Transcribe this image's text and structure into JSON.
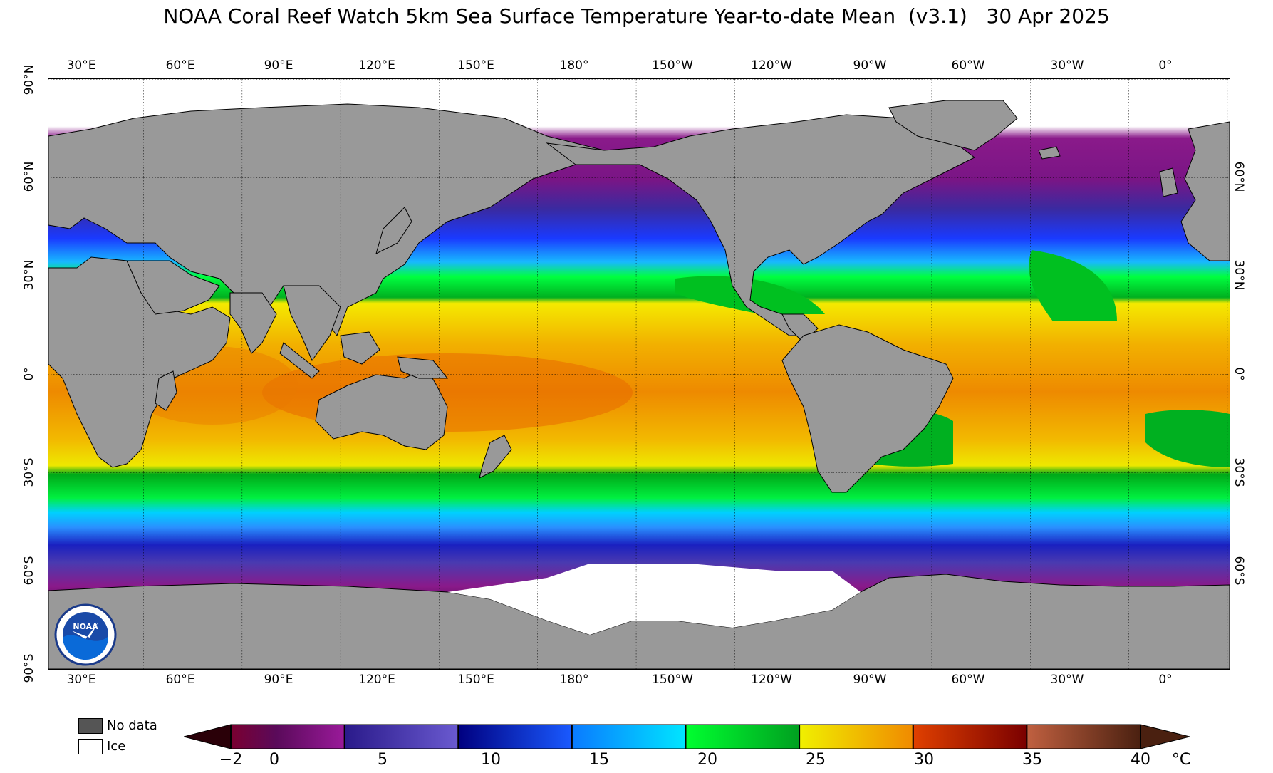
{
  "title": "NOAA Coral Reef Watch 5km Sea Surface Temperature Year-to-date Mean  (v3.1)   30 Apr 2025",
  "lon_ticks": [
    "30°E",
    "60°E",
    "90°E",
    "120°E",
    "150°E",
    "180°",
    "150°W",
    "120°W",
    "90°W",
    "60°W",
    "30°W",
    "0°"
  ],
  "lat_ticks": [
    "90°N",
    "60°N",
    "30°N",
    "0°",
    "30°S",
    "60°S",
    "90°S"
  ],
  "right_lat_ticks": [
    "60°N",
    "30°N",
    "0°",
    "30°S",
    "60°S"
  ],
  "map": {
    "land_color": "#999999",
    "ice_color": "#ffffff",
    "grid": "dotted",
    "logo": "noaa-logo"
  },
  "legend": {
    "no_data_label": "No data",
    "no_data_color": "#555555",
    "ice_label": "Ice",
    "ice_color": "#ffffff"
  },
  "colorbar": {
    "unit": "°C",
    "labels": [
      "−2",
      "0",
      "5",
      "10",
      "15",
      "20",
      "25",
      "30",
      "35",
      "40"
    ],
    "stops": [
      {
        "value": -2,
        "color": "#2a0008"
      },
      {
        "value": 0,
        "color": "#7a0030"
      },
      {
        "value": 2,
        "color": "#5a0a5a"
      },
      {
        "value": 5,
        "color": "#9a1a9a"
      },
      {
        "value": 5.01,
        "color": "#2a1a8a"
      },
      {
        "value": 10,
        "color": "#6a5ad0"
      },
      {
        "value": 10.01,
        "color": "#000080"
      },
      {
        "value": 15,
        "color": "#1a5aff"
      },
      {
        "value": 15.01,
        "color": "#0a7aff"
      },
      {
        "value": 20,
        "color": "#00e6ff"
      },
      {
        "value": 20.01,
        "color": "#00ff30"
      },
      {
        "value": 25,
        "color": "#00a020"
      },
      {
        "value": 25.01,
        "color": "#f0f000"
      },
      {
        "value": 30,
        "color": "#f08a00"
      },
      {
        "value": 30.01,
        "color": "#e04000"
      },
      {
        "value": 35,
        "color": "#7a0000"
      },
      {
        "value": 35.01,
        "color": "#c06040"
      },
      {
        "value": 40,
        "color": "#4a2010"
      }
    ]
  }
}
